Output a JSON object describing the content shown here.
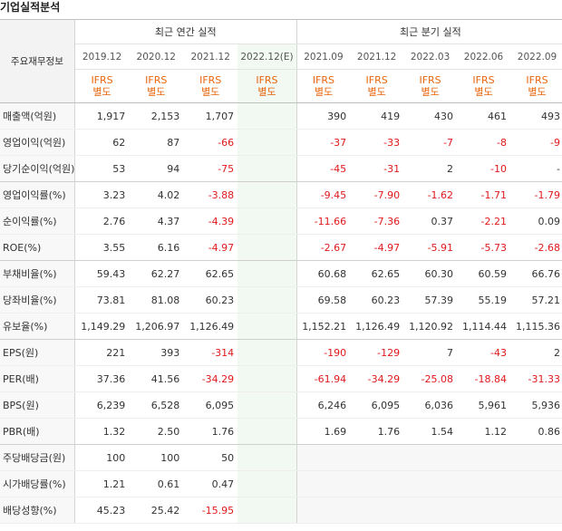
{
  "title": "기업실적분석",
  "header": {
    "row_header_label": "주요재무정보",
    "annual_group": "최근 연간 실적",
    "quarter_group": "최근 분기 실적",
    "periods": [
      "2019.12",
      "2020.12",
      "2021.12",
      "2022.12(E)",
      "2021.09",
      "2021.12",
      "2022.03",
      "2022.06",
      "2022.09"
    ],
    "ifrs_line1": "IFRS",
    "ifrs_line2": "별도"
  },
  "rows": [
    {
      "label": "매출액(억원)",
      "values": [
        "1,917",
        "2,153",
        "1,707",
        "",
        "390",
        "419",
        "430",
        "461",
        "493"
      ]
    },
    {
      "label": "영업이익(억원)",
      "values": [
        "62",
        "87",
        "-66",
        "",
        "-37",
        "-33",
        "-7",
        "-8",
        "-9"
      ]
    },
    {
      "label": "당기순이익(억원)",
      "values": [
        "53",
        "94",
        "-75",
        "",
        "-45",
        "-31",
        "2",
        "-10",
        "-"
      ]
    },
    {
      "label": "영업이익률(%)",
      "values": [
        "3.23",
        "4.02",
        "-3.88",
        "",
        "-9.45",
        "-7.90",
        "-1.62",
        "-1.71",
        "-1.79"
      ]
    },
    {
      "label": "순이익률(%)",
      "values": [
        "2.76",
        "4.37",
        "-4.39",
        "",
        "-11.66",
        "-7.36",
        "0.37",
        "-2.21",
        "0.09"
      ]
    },
    {
      "label": "ROE(%)",
      "values": [
        "3.55",
        "6.16",
        "-4.97",
        "",
        "-2.67",
        "-4.97",
        "-5.91",
        "-5.73",
        "-2.68"
      ]
    },
    {
      "label": "부채비율(%)",
      "values": [
        "59.43",
        "62.27",
        "62.65",
        "",
        "60.68",
        "62.65",
        "60.30",
        "60.59",
        "66.76"
      ]
    },
    {
      "label": "당좌비율(%)",
      "values": [
        "73.81",
        "81.08",
        "60.23",
        "",
        "69.58",
        "60.23",
        "57.39",
        "55.19",
        "57.21"
      ]
    },
    {
      "label": "유보율(%)",
      "values": [
        "1,149.29",
        "1,206.97",
        "1,126.49",
        "",
        "1,152.21",
        "1,126.49",
        "1,120.92",
        "1,114.44",
        "1,115.36"
      ]
    },
    {
      "label": "EPS(원)",
      "values": [
        "221",
        "393",
        "-314",
        "",
        "-190",
        "-129",
        "7",
        "-43",
        "2"
      ]
    },
    {
      "label": "PER(배)",
      "values": [
        "37.36",
        "41.56",
        "-34.29",
        "",
        "-61.94",
        "-34.29",
        "-25.08",
        "-18.84",
        "-31.33"
      ]
    },
    {
      "label": "BPS(원)",
      "values": [
        "6,239",
        "6,528",
        "6,095",
        "",
        "6,246",
        "6,095",
        "6,036",
        "5,961",
        "5,936"
      ]
    },
    {
      "label": "PBR(배)",
      "values": [
        "1.32",
        "2.50",
        "1.76",
        "",
        "1.69",
        "1.76",
        "1.54",
        "1.12",
        "0.86"
      ]
    },
    {
      "label": "주당배당금(원)",
      "values": [
        "100",
        "100",
        "50",
        "",
        "",
        "",
        "",
        "",
        ""
      ]
    },
    {
      "label": "시가배당률(%)",
      "values": [
        "1.21",
        "0.61",
        "0.47",
        "",
        "",
        "",
        "",
        "",
        ""
      ]
    },
    {
      "label": "배당성향(%)",
      "values": [
        "45.23",
        "25.42",
        "-15.95",
        "",
        "",
        "",
        "",
        "",
        ""
      ]
    }
  ],
  "colors": {
    "negative": "#e0191c",
    "ifrs": "#e8660d",
    "estimate_bg": "#f2f8f2"
  }
}
